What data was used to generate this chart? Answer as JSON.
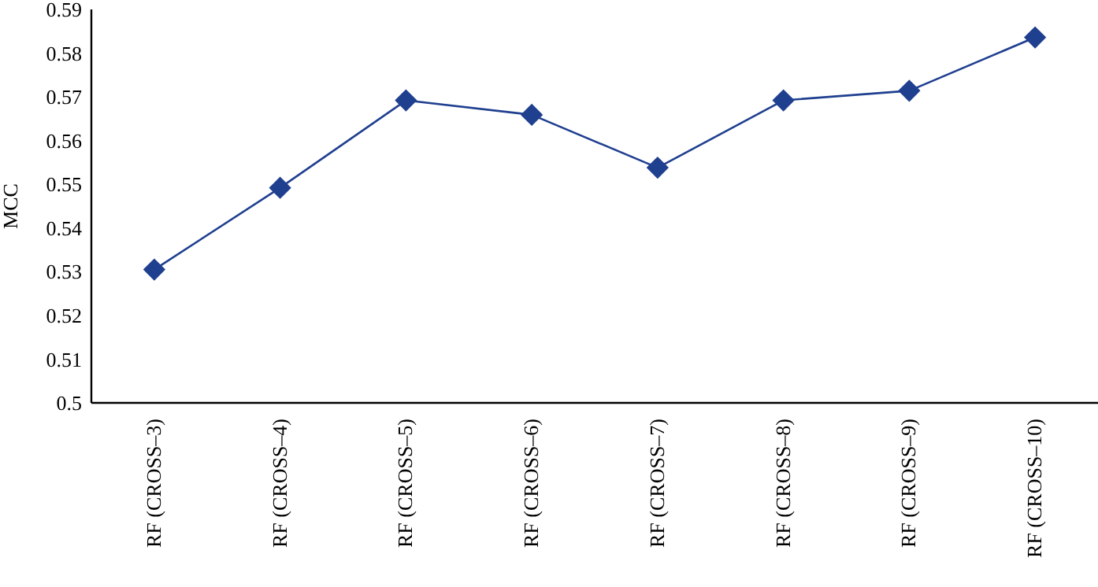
{
  "chart_data": {
    "type": "line",
    "ylabel": "MCC",
    "categories": [
      "RF (CROSS–3)",
      "RF (CROSS–4)",
      "RF (CROSS–5)",
      "RF (CROSS–6)",
      "RF (CROSS–7)",
      "RF (CROSS–8)",
      "RF (CROSS–9)",
      "RF (CROSS–10)"
    ],
    "series": [
      {
        "color": "#1f3f8f",
        "values": [
          0.5305,
          0.5492,
          0.5692,
          0.5659,
          0.5538,
          0.5692,
          0.5714,
          0.5836
        ]
      }
    ],
    "ylim": [
      0.5,
      0.59
    ],
    "yticks": [
      0.5,
      0.51,
      0.52,
      0.53,
      0.54,
      0.55,
      0.56,
      0.57,
      0.58,
      0.59
    ],
    "marker": "diamond",
    "line_style": "solid"
  }
}
